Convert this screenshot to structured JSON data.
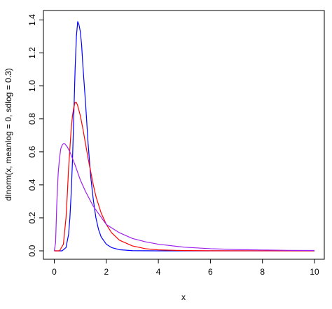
{
  "chart_data": {
    "type": "line",
    "title": "",
    "xlabel": "x",
    "ylabel": "dlnorm(x, meanlog = 0, sdlog = 0.3)",
    "xlim": [
      0,
      10
    ],
    "ylim": [
      0,
      1.4
    ],
    "grid": false,
    "x_ticks": [
      "0",
      "2",
      "4",
      "6",
      "8",
      "10"
    ],
    "y_ticks": [
      "0.0",
      "0.2",
      "0.4",
      "0.6",
      "0.8",
      "1.0",
      "1.2",
      "1.4"
    ],
    "series": [
      {
        "color": "#0000ff",
        "points": [
          [
            0.0,
            0.0
          ],
          [
            0.3,
            0.0
          ],
          [
            0.45,
            0.02
          ],
          [
            0.55,
            0.1
          ],
          [
            0.6,
            0.2
          ],
          [
            0.65,
            0.35
          ],
          [
            0.7,
            0.55
          ],
          [
            0.75,
            0.82
          ],
          [
            0.8,
            1.1
          ],
          [
            0.85,
            1.3
          ],
          [
            0.9,
            1.39
          ],
          [
            0.95,
            1.37
          ],
          [
            1.0,
            1.33
          ],
          [
            1.05,
            1.25
          ],
          [
            1.1,
            1.12
          ],
          [
            1.2,
            0.9
          ],
          [
            1.3,
            0.65
          ],
          [
            1.4,
            0.45
          ],
          [
            1.5,
            0.31
          ],
          [
            1.6,
            0.2
          ],
          [
            1.7,
            0.13
          ],
          [
            1.8,
            0.085
          ],
          [
            2.0,
            0.04
          ],
          [
            2.2,
            0.02
          ],
          [
            2.5,
            0.007
          ],
          [
            3.0,
            0.001
          ],
          [
            4.0,
            0.0
          ],
          [
            10.0,
            0.0
          ]
        ]
      },
      {
        "color": "#ff0000",
        "points": [
          [
            0.0,
            0.0
          ],
          [
            0.2,
            0.0
          ],
          [
            0.35,
            0.04
          ],
          [
            0.45,
            0.2
          ],
          [
            0.5,
            0.34
          ],
          [
            0.55,
            0.5
          ],
          [
            0.6,
            0.62
          ],
          [
            0.65,
            0.74
          ],
          [
            0.7,
            0.82
          ],
          [
            0.75,
            0.87
          ],
          [
            0.8,
            0.9
          ],
          [
            0.85,
            0.9
          ],
          [
            0.9,
            0.88
          ],
          [
            1.0,
            0.82
          ],
          [
            1.1,
            0.74
          ],
          [
            1.2,
            0.65
          ],
          [
            1.3,
            0.56
          ],
          [
            1.4,
            0.48
          ],
          [
            1.5,
            0.4
          ],
          [
            1.6,
            0.33
          ],
          [
            1.8,
            0.23
          ],
          [
            2.0,
            0.16
          ],
          [
            2.2,
            0.11
          ],
          [
            2.5,
            0.065
          ],
          [
            3.0,
            0.03
          ],
          [
            3.5,
            0.013
          ],
          [
            4.0,
            0.006
          ],
          [
            5.0,
            0.0015
          ],
          [
            6.0,
            0.0004
          ],
          [
            10.0,
            0.0
          ]
        ]
      },
      {
        "color": "#a020f0",
        "points": [
          [
            0.0,
            0.0
          ],
          [
            0.05,
            0.05
          ],
          [
            0.1,
            0.3
          ],
          [
            0.15,
            0.47
          ],
          [
            0.2,
            0.56
          ],
          [
            0.25,
            0.62
          ],
          [
            0.3,
            0.64
          ],
          [
            0.35,
            0.65
          ],
          [
            0.4,
            0.65
          ],
          [
            0.5,
            0.63
          ],
          [
            0.6,
            0.6
          ],
          [
            0.7,
            0.56
          ],
          [
            0.8,
            0.52
          ],
          [
            1.0,
            0.43
          ],
          [
            1.2,
            0.36
          ],
          [
            1.5,
            0.27
          ],
          [
            2.0,
            0.16
          ],
          [
            2.5,
            0.11
          ],
          [
            3.0,
            0.075
          ],
          [
            3.5,
            0.055
          ],
          [
            4.0,
            0.04
          ],
          [
            5.0,
            0.022
          ],
          [
            6.0,
            0.013
          ],
          [
            7.0,
            0.008
          ],
          [
            8.0,
            0.005
          ],
          [
            9.0,
            0.003
          ],
          [
            10.0,
            0.002
          ]
        ]
      }
    ]
  }
}
